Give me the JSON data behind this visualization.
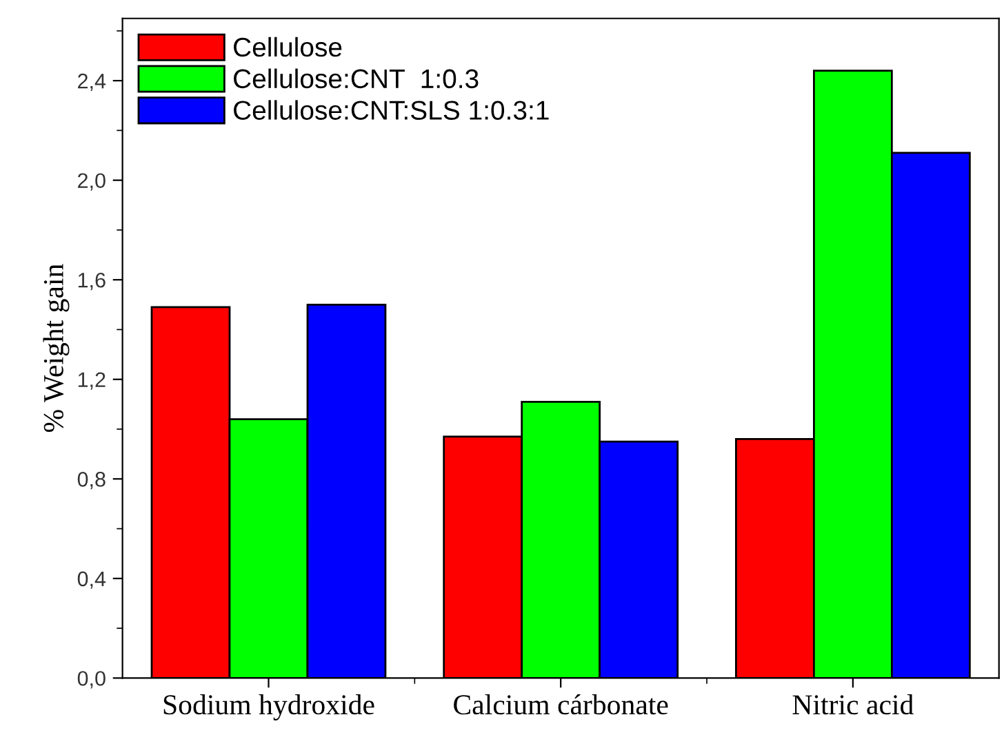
{
  "chart_data": {
    "type": "bar",
    "ylabel": "% Weight gain",
    "categories": [
      "Sodium hydroxide",
      "Calcium cárbonate",
      "Nitric acid"
    ],
    "series": [
      {
        "name": "Cellulose",
        "color": "#ff0000",
        "values": [
          1.49,
          0.97,
          0.96
        ]
      },
      {
        "name": "Cellulose:CNT  1:0.3",
        "color": "#00ff00",
        "values": [
          1.04,
          1.11,
          2.44
        ]
      },
      {
        "name": "Cellulose:CNT:SLS 1:0.3:1",
        "color": "#0000ff",
        "values": [
          1.5,
          0.95,
          2.11
        ]
      }
    ],
    "ylim": [
      0,
      2.65
    ],
    "yticks": [
      {
        "value": 0,
        "label": "0,0"
      },
      {
        "value": 0.4,
        "label": "0,4"
      },
      {
        "value": 0.8,
        "label": "0,8"
      },
      {
        "value": 1.2,
        "label": "1,2"
      },
      {
        "value": 1.6,
        "label": "1,6"
      },
      {
        "value": 2.0,
        "label": "2,0"
      },
      {
        "value": 2.4,
        "label": "2,4"
      }
    ],
    "grid": false,
    "legend": "top left"
  }
}
